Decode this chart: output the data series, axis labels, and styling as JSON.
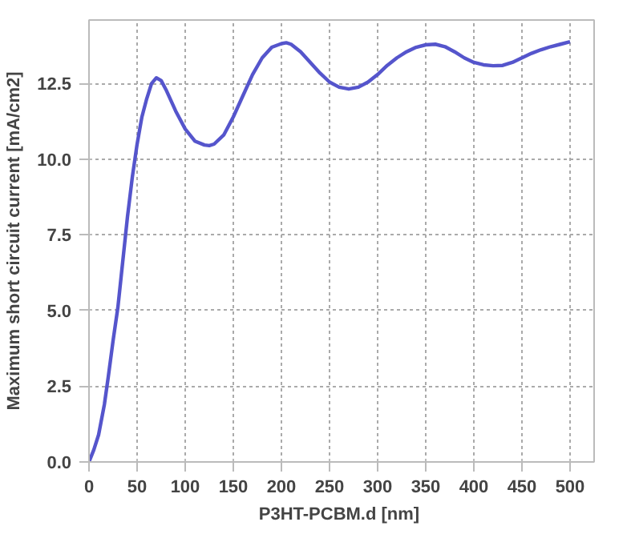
{
  "chart_data": {
    "type": "line",
    "xlabel": "P3HT-PCBM.d  [nm]",
    "ylabel": "Maximum short circuit current [mA/cm2]",
    "xlim": [
      0,
      525
    ],
    "ylim": [
      0,
      14.6
    ],
    "xticks": [
      0,
      50,
      100,
      150,
      200,
      250,
      300,
      350,
      400,
      450,
      500
    ],
    "yticks": [
      {
        "value": 0,
        "label": "0.0"
      },
      {
        "value": 2.5,
        "label": "2.5"
      },
      {
        "value": 5,
        "label": "5.0"
      },
      {
        "value": 7.5,
        "label": "7.5"
      },
      {
        "value": 10,
        "label": "10.0"
      },
      {
        "value": 12.5,
        "label": "12.5"
      }
    ],
    "grid": true,
    "marker": "none",
    "line_style": "solid",
    "series": [
      {
        "color": "#5555cc",
        "x": [
          0,
          5,
          10,
          16,
          20,
          25,
          30,
          35,
          40,
          45,
          50,
          55,
          60,
          65,
          70,
          75,
          80,
          90,
          100,
          110,
          120,
          125,
          130,
          140,
          150,
          160,
          170,
          180,
          190,
          200,
          205,
          210,
          220,
          230,
          240,
          250,
          260,
          270,
          280,
          290,
          300,
          310,
          320,
          330,
          340,
          350,
          360,
          370,
          380,
          390,
          400,
          410,
          420,
          430,
          440,
          450,
          460,
          470,
          480,
          490,
          500
        ],
        "values": [
          0,
          0.4,
          0.9,
          1.9,
          2.8,
          4.0,
          5.1,
          6.6,
          8.1,
          9.4,
          10.5,
          11.4,
          12.0,
          12.5,
          12.69,
          12.6,
          12.3,
          11.6,
          11.0,
          10.6,
          10.47,
          10.45,
          10.5,
          10.8,
          11.4,
          12.1,
          12.8,
          13.35,
          13.7,
          13.82,
          13.85,
          13.8,
          13.55,
          13.2,
          12.85,
          12.55,
          12.38,
          12.32,
          12.38,
          12.55,
          12.8,
          13.1,
          13.35,
          13.55,
          13.7,
          13.78,
          13.8,
          13.72,
          13.55,
          13.35,
          13.2,
          13.12,
          13.09,
          13.1,
          13.2,
          13.35,
          13.5,
          13.62,
          13.72,
          13.8,
          13.88
        ]
      }
    ]
  }
}
